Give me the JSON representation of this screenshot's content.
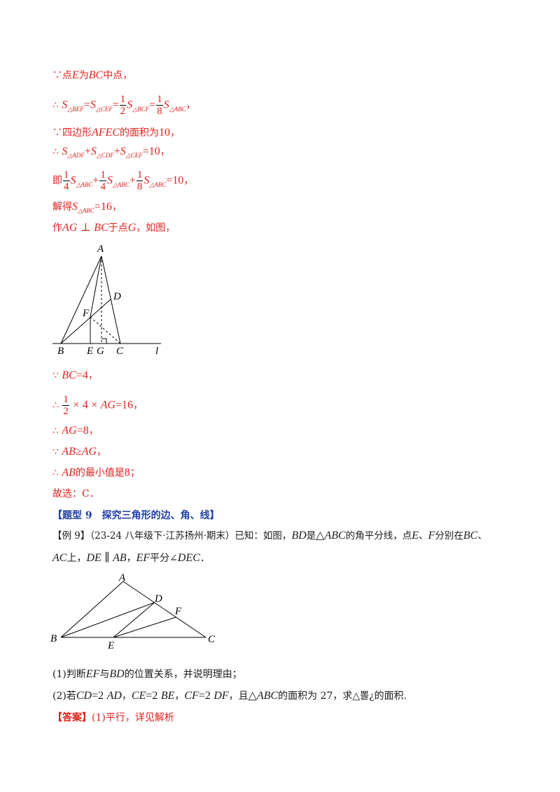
{
  "lines": {
    "l1": {
      "prefix": "∵点",
      "E": "E",
      "t1": "为",
      "BC": "BC",
      "t2": "中点，"
    },
    "l2": {
      "therefore": "∴",
      "S": "S",
      "sub_BEF": "△BEF",
      "eq": "=",
      "sub_CEF": "△CEF",
      "frac_half_num": "1",
      "frac_half_den": "2",
      "sub_BCF": "△BCF",
      "frac_eighth_num": "1",
      "frac_eighth_den": "8",
      "sub_ABC": "△ABC",
      "end": "，"
    },
    "l3": {
      "prefix": "∵四边形",
      "AFEC": "AFEC",
      "text": "的面积为",
      "val": "10",
      "end": "，"
    },
    "l4": {
      "therefore": "∴",
      "S": "S",
      "sub_ADF": "△ADF",
      "plus": "+",
      "sub_CDF": "△CDF",
      "sub_CEF": "△CEF",
      "eq": "=",
      "val": "10",
      "end": "，"
    },
    "l5": {
      "prefix": "即",
      "f1n": "1",
      "f1d": "4",
      "S": "S",
      "sub_ABC": "△ABC",
      "plus": "+",
      "f2n": "1",
      "f2d": "4",
      "f3n": "1",
      "f3d": "8",
      "eq": "=",
      "val": "10",
      "end": "，"
    },
    "l6": {
      "prefix": "解得",
      "S": "S",
      "sub_ABC": "△ABC",
      "eq": "=",
      "val": "16",
      "end": "，"
    },
    "l7": {
      "prefix": "作",
      "AG": "AG",
      "perp": "⊥",
      "BC": "BC",
      "t1": "于点",
      "G": "G",
      "t2": "，如图，"
    },
    "l8": {
      "because": "∵",
      "BC": "BC",
      "eq": "=",
      "val": "4",
      "end": "，"
    },
    "l9": {
      "therefore": "∴",
      "fn": "1",
      "fd": "2",
      "times": "×",
      "four": "4",
      "AG": "AG",
      "eq": "=",
      "val": "16",
      "end": "，"
    },
    "l10": {
      "therefore": "∴",
      "AG": "AG",
      "eq": "=",
      "val": "8",
      "end": "，"
    },
    "l11": {
      "because": "∵",
      "AB": "AB",
      "ge": "≥",
      "AG": "AG",
      "end": "，"
    },
    "l12": {
      "therefore": "∴",
      "AB": "AB",
      "text": "的最小值是",
      "val": "8",
      "end": "；"
    },
    "l13": {
      "text": "故选：C．"
    },
    "section": {
      "text": "【题型 9　探究三角形的边、角、线】"
    },
    "example": {
      "label": "【例 9】",
      "source": "（23-24 八年级下·江苏扬州·期末）已知：如图，",
      "BD": "BD",
      "t1": "是",
      "ABC": "△ABC",
      "t2": "的角平分线，点",
      "E": "E",
      "sep": "、",
      "F": "F",
      "t3": "分别在",
      "BC": "BC",
      "t4": "、"
    },
    "example2": {
      "AC": "AC",
      "t1": "上，",
      "DE": "DE",
      "par": "∥",
      "AB": "AB",
      "t2": "，",
      "EF": "EF",
      "t3": "平分∠",
      "DEC": "DEC",
      "end": "．"
    },
    "q1": {
      "num": "(1)判断",
      "EF": "EF",
      "t1": "与",
      "BD": "BD",
      "t2": "的位置关系，并说明理由；"
    },
    "q2": {
      "num": "(2)若",
      "CD": "CD",
      "eq": "=",
      "two": "2",
      "AD": "AD",
      "c1": "，",
      "CE": "CE",
      "BE": "BE",
      "c2": "，",
      "CF": "CF",
      "DF": "DF",
      "t1": "，且",
      "ABC": "△ABC",
      "t2": "的面积为 27，求",
      "tail": "△뽈¿",
      "t3": "的面积."
    },
    "answer": {
      "label": "【答案】",
      "text": "(1)平行，详见解析"
    }
  },
  "figure1": {
    "labels": {
      "A": "A",
      "B": "B",
      "C": "C",
      "D": "D",
      "E": "E",
      "F": "F",
      "G": "G",
      "l": "l"
    }
  },
  "figure2": {
    "labels": {
      "A": "A",
      "B": "B",
      "C": "C",
      "D": "D",
      "E": "E",
      "F": "F"
    }
  },
  "colors": {
    "accent_red": "#e0201e",
    "section_blue": "#1f3fa6"
  }
}
